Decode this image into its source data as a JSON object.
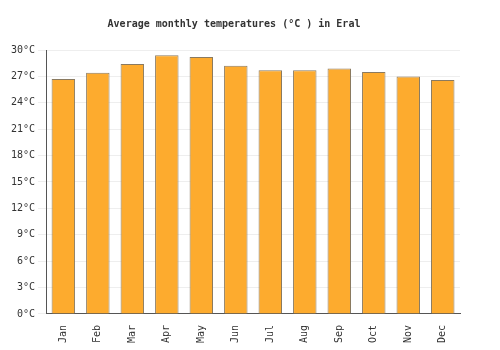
{
  "chart_data": {
    "type": "bar",
    "title": "Average monthly temperatures (°C ) in Eral",
    "categories": [
      "Jan",
      "Feb",
      "Mar",
      "Apr",
      "May",
      "Jun",
      "Jul",
      "Aug",
      "Sep",
      "Oct",
      "Nov",
      "Dec"
    ],
    "values": [
      26.7,
      27.4,
      28.4,
      29.4,
      29.2,
      28.2,
      27.7,
      27.7,
      27.9,
      27.5,
      27.0,
      26.6
    ],
    "color": "#fdab2e",
    "ylim": [
      0,
      30
    ],
    "yticks": [
      {
        "value": 0,
        "label": "0°C"
      },
      {
        "value": 3,
        "label": "3°C"
      },
      {
        "value": 6,
        "label": "6°C"
      },
      {
        "value": 9,
        "label": "9°C"
      },
      {
        "value": 12,
        "label": "12°C"
      },
      {
        "value": 15,
        "label": "15°C"
      },
      {
        "value": 18,
        "label": "18°C"
      },
      {
        "value": 21,
        "label": "21°C"
      },
      {
        "value": 24,
        "label": "24°C"
      },
      {
        "value": 27,
        "label": "27°C"
      },
      {
        "value": 30,
        "label": "30°C"
      }
    ],
    "grid": true
  }
}
